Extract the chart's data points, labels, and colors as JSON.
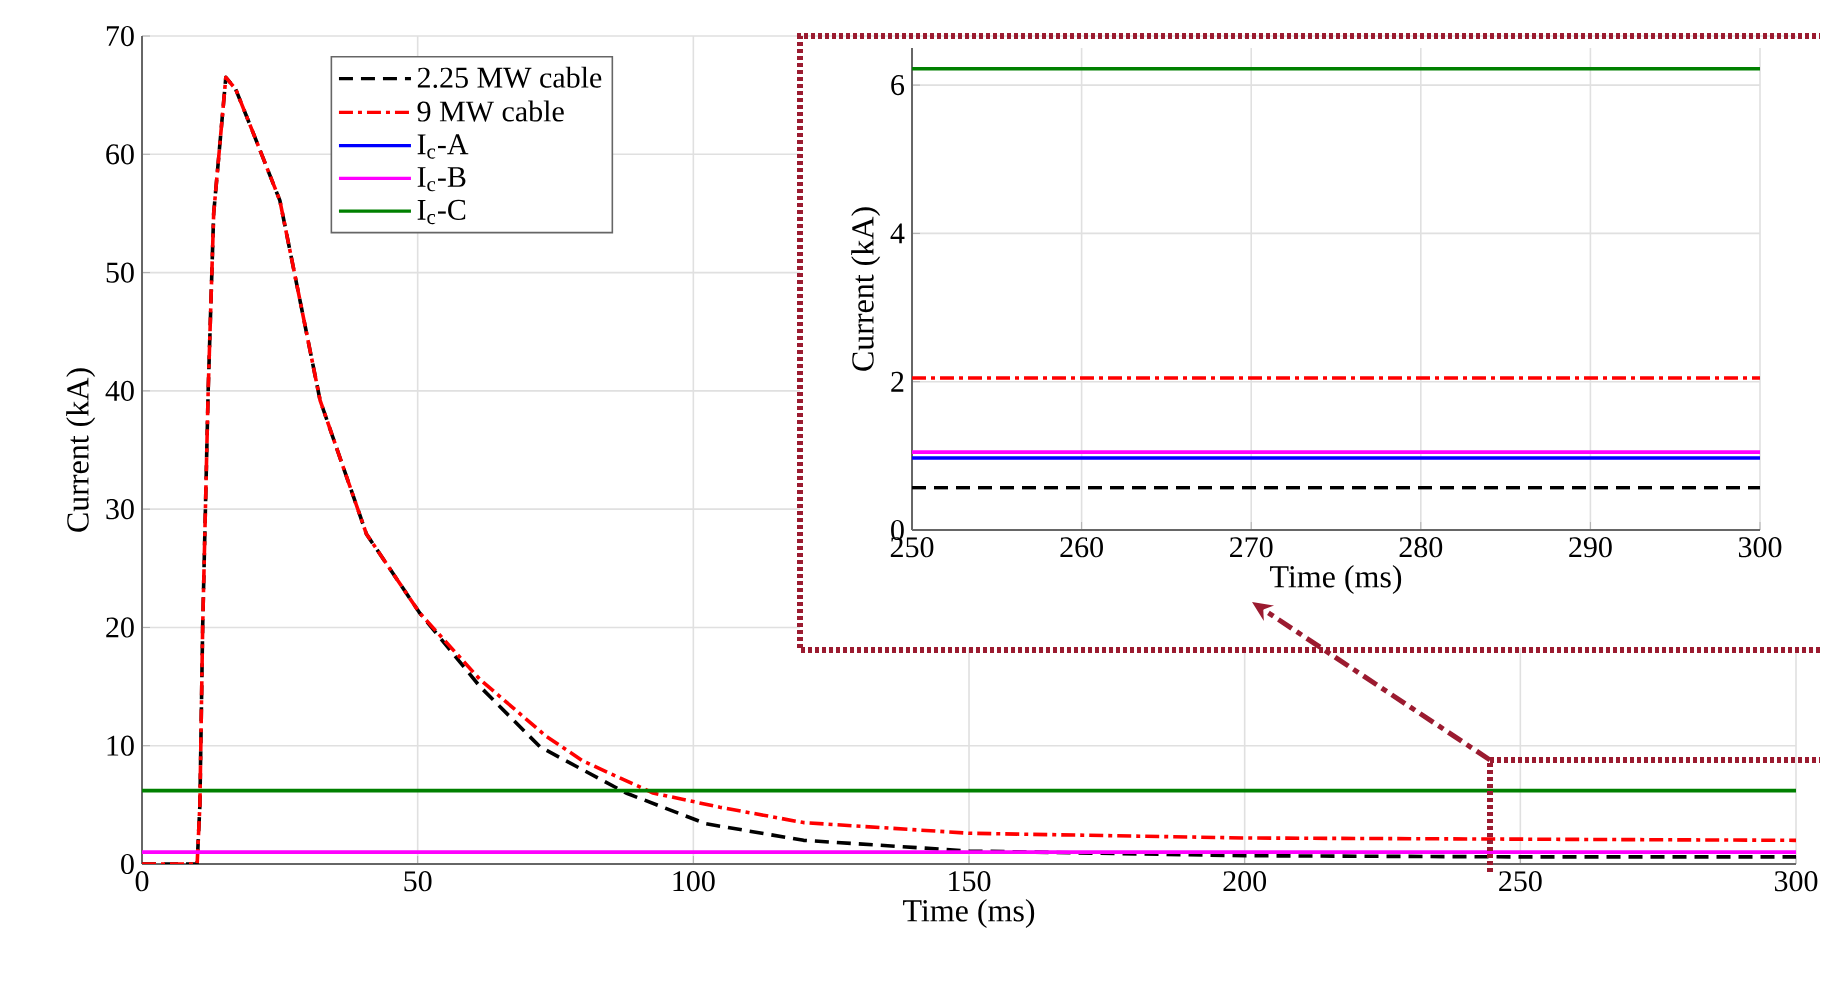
{
  "chart_data": [
    {
      "type": "line",
      "xlabel": "Time (ms)",
      "ylabel": "Current (kA)",
      "xlim": [
        0,
        300
      ],
      "ylim": [
        0,
        70
      ],
      "xticks": [
        0,
        50,
        100,
        150,
        200,
        250,
        300
      ],
      "yticks": [
        0,
        10,
        20,
        30,
        40,
        50,
        60,
        70
      ],
      "grid": true,
      "legend": "top left",
      "series": [
        {
          "name": "2.25 MW cable",
          "color": "#000000",
          "line_style": "dashed",
          "x": [
            0,
            10,
            10.5,
            11,
            12,
            13,
            15.2,
            17,
            20,
            25,
            32.3,
            40.7,
            50.4,
            61.3,
            72.2,
            87.8,
            102.3,
            120,
            150,
            200,
            250,
            300
          ],
          "values": [
            0,
            0,
            5,
            20,
            40,
            55,
            66.5,
            65.5,
            62,
            56.1,
            39.2,
            27.9,
            21.2,
            15.0,
            9.9,
            6.0,
            3.4,
            2.0,
            1.1,
            0.7,
            0.6,
            0.6
          ]
        },
        {
          "name": "9 MW cable",
          "color": "#ff0000",
          "line_style": "dashdot",
          "x": [
            0,
            10,
            10.5,
            11,
            12,
            13,
            15.2,
            17,
            20,
            25,
            32.3,
            40.7,
            50.4,
            61.3,
            73.3,
            80,
            92.7,
            104.8,
            120,
            150,
            200,
            250,
            300
          ],
          "values": [
            0,
            0,
            5,
            20,
            40,
            55,
            66.5,
            65.5,
            62,
            56.1,
            39.2,
            27.9,
            21.2,
            15.6,
            10.8,
            8.7,
            6.0,
            4.8,
            3.5,
            2.6,
            2.2,
            2.1,
            2.0
          ]
        },
        {
          "name": "I$_{c}$-A",
          "color": "#0000ff",
          "line_style": "solid",
          "values": [
            null,
            null
          ]
        },
        {
          "name": "I$_{c}$-B",
          "color": "#ff00ff",
          "line_style": "solid",
          "x": [
            0,
            300
          ],
          "values": [
            1,
            1
          ]
        },
        {
          "name": "I$_{c}$-C",
          "color": "#008000",
          "line_style": "solid",
          "x": [
            0,
            300
          ],
          "values": [
            6.2,
            6.2
          ]
        }
      ]
    },
    {
      "type": "line",
      "xlabel": "Time (ms)",
      "ylabel": "Current (kA)",
      "xlim": [
        250,
        300
      ],
      "ylim": [
        0,
        6.5
      ],
      "xticks": [
        250,
        260,
        270,
        280,
        290,
        300
      ],
      "yticks": [
        0,
        2,
        4,
        6
      ],
      "grid": true,
      "series": [
        {
          "color": "#000000",
          "line_style": "dashed",
          "x": [
            250,
            300
          ],
          "values": [
            0.57,
            0.57
          ]
        },
        {
          "color": "#ff0000",
          "line_style": "dashdot",
          "x": [
            250,
            300
          ],
          "values": [
            2.05,
            2.05
          ]
        },
        {
          "color": "#0000ff",
          "line_style": "solid",
          "x": [
            250,
            300
          ],
          "values": [
            0.97,
            0.97
          ]
        },
        {
          "color": "#ff00ff",
          "line_style": "solid",
          "x": [
            250,
            300
          ],
          "values": [
            1.05,
            1.05
          ]
        },
        {
          "color": "#008000",
          "line_style": "solid",
          "x": [
            250,
            300
          ],
          "values": [
            6.22,
            6.22
          ]
        }
      ]
    }
  ]
}
